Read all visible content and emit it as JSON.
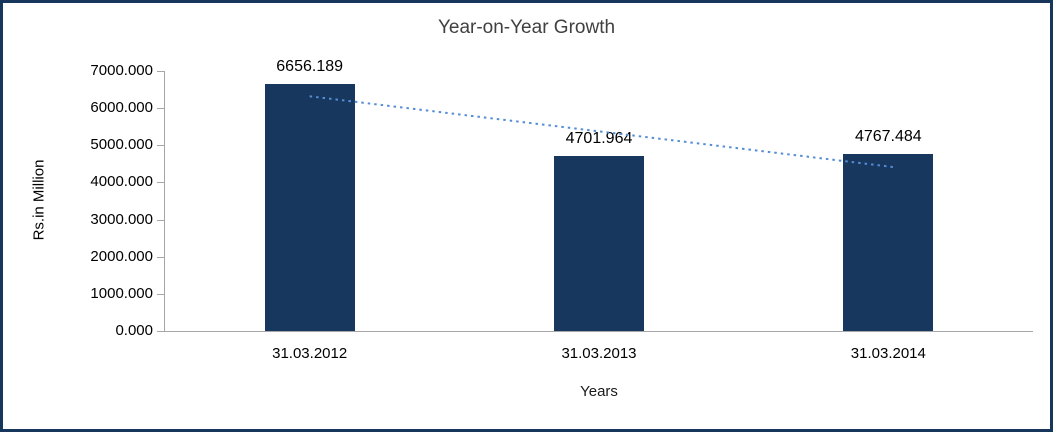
{
  "chart_data": {
    "type": "bar",
    "title": "Year-on-Year Growth",
    "xlabel": "Years",
    "ylabel": "Rs.in Million",
    "categories": [
      "31.03.2012",
      "31.03.2013",
      "31.03.2014"
    ],
    "values": [
      6656.189,
      4701.964,
      4767.484
    ],
    "value_labels": [
      "6656.189",
      "4701.964",
      "4767.484"
    ],
    "ylim": [
      0,
      7000
    ],
    "ytick_labels": [
      "0.000",
      "1000.000",
      "2000.000",
      "3000.000",
      "4000.000",
      "5000.000",
      "6000.000",
      "7000.000"
    ],
    "grid": false,
    "legend": "none",
    "trendline": {
      "style": "dotted",
      "fit": "linear"
    },
    "colors": {
      "bar": "#17375E",
      "frame": "#16365C",
      "axis": "#A6A6A6",
      "trendline": "#558ED5",
      "title": "#404040"
    }
  }
}
